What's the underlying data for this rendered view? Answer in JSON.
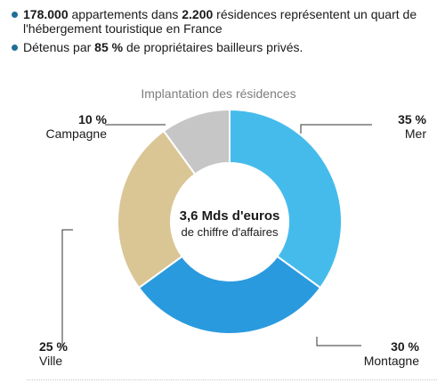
{
  "bullets": [
    {
      "strong1": "178.000",
      "text1": " appartements dans ",
      "strong2": "2.200",
      "text2": " résidences représentent un quart de l'hébergement touristique en France"
    },
    {
      "strong1": "",
      "text1": "Détenus par ",
      "strong2": "85 %",
      "text2": " de propriétaires bailleurs privés."
    }
  ],
  "center": {
    "line1": "3,6 Mds d'euros",
    "line2": "de chiffre d'affaires"
  },
  "chart_data": {
    "type": "pie",
    "title": "Implantation des résidences",
    "donut": true,
    "slices": [
      {
        "label": "Mer",
        "value": 35,
        "value_label": "35 %",
        "color": "#45bbec"
      },
      {
        "label": "Montagne",
        "value": 30,
        "value_label": "30 %",
        "color": "#2a9adf"
      },
      {
        "label": "Ville",
        "value": 25,
        "value_label": "25 %",
        "color": "#dac595"
      },
      {
        "label": "Campagne",
        "value": 10,
        "value_label": "10 %",
        "color": "#c6c6c6"
      }
    ]
  }
}
